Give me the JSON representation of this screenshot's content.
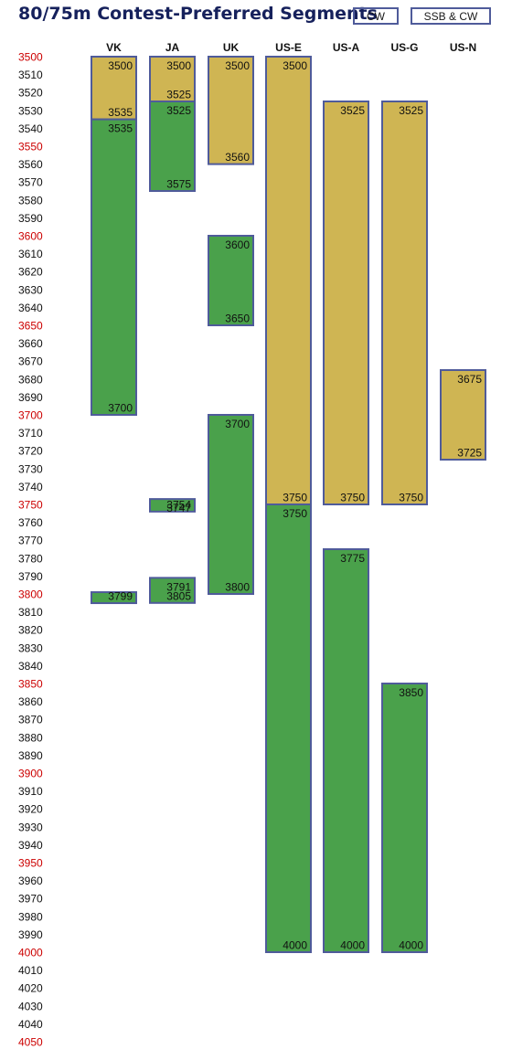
{
  "chart_data": {
    "type": "bar",
    "title": "80/75m Contest-Preferred Segments",
    "legend": [
      {
        "name": "CW",
        "color": "#cfb553"
      },
      {
        "name": "SSB & CW",
        "color": "#4aa14b"
      }
    ],
    "categories": [
      "VK",
      "JA",
      "UK",
      "US-E",
      "US-A",
      "US-G",
      "US-N"
    ],
    "ylim": [
      3500,
      4050
    ],
    "ytick_step": 10,
    "ytick_highlight_every": 50,
    "ytick_highlight_color": "#cc0000",
    "ytick_color": "#111111",
    "border_color": "#4f5b9a",
    "segments": [
      {
        "category": "VK",
        "mode": "CW",
        "start": 3500,
        "end": 3535,
        "start_label": "3500",
        "end_label": "3535"
      },
      {
        "category": "VK",
        "mode": "SSB & CW",
        "start": 3535,
        "end": 3700,
        "start_label": "3535",
        "end_label": "3700"
      },
      {
        "category": "VK",
        "mode": "SSB & CW",
        "start": 3799,
        "end": 3800,
        "start_label": "",
        "end_label": "3799"
      },
      {
        "category": "JA",
        "mode": "CW",
        "start": 3500,
        "end": 3525,
        "start_label": "3500",
        "end_label": "3525"
      },
      {
        "category": "JA",
        "mode": "SSB & CW",
        "start": 3525,
        "end": 3575,
        "start_label": "3525",
        "end_label": "3575"
      },
      {
        "category": "JA",
        "mode": "SSB & CW",
        "start": 3747,
        "end": 3754,
        "start_label": "3747",
        "end_label": "3754"
      },
      {
        "category": "JA",
        "mode": "SSB & CW",
        "start": 3791,
        "end": 3805,
        "start_label": "3791",
        "end_label": "3805"
      },
      {
        "category": "UK",
        "mode": "CW",
        "start": 3500,
        "end": 3560,
        "start_label": "3500",
        "end_label": "3560"
      },
      {
        "category": "UK",
        "mode": "SSB & CW",
        "start": 3600,
        "end": 3650,
        "start_label": "3600",
        "end_label": "3650"
      },
      {
        "category": "UK",
        "mode": "SSB & CW",
        "start": 3700,
        "end": 3800,
        "start_label": "3700",
        "end_label": "3800"
      },
      {
        "category": "US-E",
        "mode": "CW",
        "start": 3500,
        "end": 3750,
        "start_label": "3500",
        "end_label": "3750"
      },
      {
        "category": "US-E",
        "mode": "SSB & CW",
        "start": 3750,
        "end": 4000,
        "start_label": "3750",
        "end_label": "4000"
      },
      {
        "category": "US-A",
        "mode": "CW",
        "start": 3525,
        "end": 3750,
        "start_label": "3525",
        "end_label": "3750"
      },
      {
        "category": "US-A",
        "mode": "SSB & CW",
        "start": 3775,
        "end": 4000,
        "start_label": "3775",
        "end_label": "4000"
      },
      {
        "category": "US-G",
        "mode": "CW",
        "start": 3525,
        "end": 3750,
        "start_label": "3525",
        "end_label": "3750"
      },
      {
        "category": "US-G",
        "mode": "SSB & CW",
        "start": 3850,
        "end": 4000,
        "start_label": "3850",
        "end_label": "4000"
      },
      {
        "category": "US-N",
        "mode": "CW",
        "start": 3675,
        "end": 3725,
        "start_label": "3675",
        "end_label": "3725"
      }
    ]
  }
}
